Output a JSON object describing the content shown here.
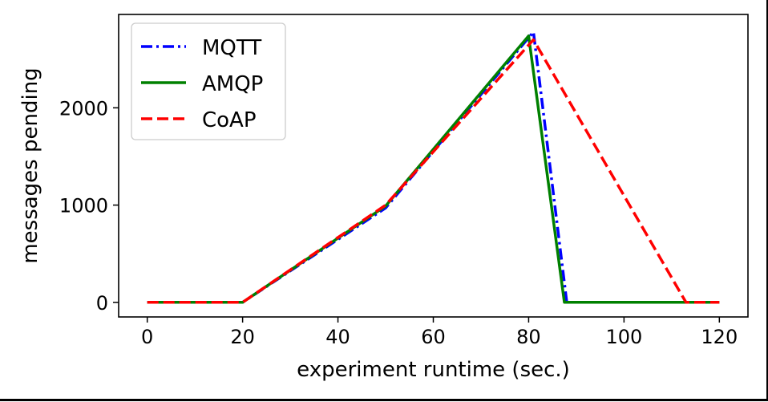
{
  "chart_data": {
    "type": "line",
    "title": "",
    "xlabel": "experiment runtime (sec.)",
    "ylabel": "messages pending",
    "xlim": [
      -6,
      126
    ],
    "ylim": [
      -150,
      2960
    ],
    "xticks": [
      0,
      20,
      40,
      60,
      80,
      100,
      120
    ],
    "xtick_labels": [
      "0",
      "20",
      "40",
      "60",
      "80",
      "100",
      "120"
    ],
    "yticks": [
      0,
      1000,
      2000
    ],
    "ytick_labels": [
      "0",
      "1000",
      "2000"
    ],
    "grid": false,
    "legend_position": "top-left",
    "series": [
      {
        "name": "MQTT",
        "color": "#0000ff",
        "line_style": "dashdot",
        "x": [
          0,
          20,
          50,
          81,
          88,
          120
        ],
        "y": [
          0,
          0,
          970,
          2780,
          0,
          0
        ]
      },
      {
        "name": "AMQP",
        "color": "#008000",
        "line_style": "solid",
        "x": [
          0,
          20,
          50,
          80,
          87.5,
          120
        ],
        "y": [
          0,
          0,
          990,
          2740,
          0,
          0
        ]
      },
      {
        "name": "CoAP",
        "color": "#ff0000",
        "line_style": "dashed",
        "x": [
          0,
          20,
          50,
          81,
          113,
          120
        ],
        "y": [
          0,
          0,
          1000,
          2700,
          0,
          0
        ]
      }
    ]
  }
}
